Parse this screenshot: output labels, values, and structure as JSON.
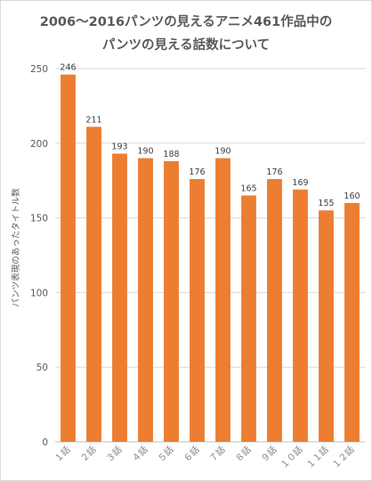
{
  "chart_data": {
    "type": "bar",
    "title": "2006〜2016パンツの見えるアニメ461作品中の",
    "subtitle": "パンツの見える話数について",
    "xlabel": "",
    "ylabel": "パンツ表現のあったタイトル数",
    "categories": [
      "１話",
      "２話",
      "３話",
      "４話",
      "５話",
      "６話",
      "７話",
      "８話",
      "９話",
      "１０話",
      "１１話",
      "１２話"
    ],
    "values": [
      246,
      211,
      193,
      190,
      188,
      176,
      190,
      165,
      176,
      169,
      155,
      160
    ],
    "ylim": [
      0,
      250
    ],
    "yticks": [
      0,
      50,
      100,
      150,
      200,
      250
    ],
    "grid": true,
    "legend": "none",
    "bar_color": "#ED7D31",
    "data_labels": true
  }
}
